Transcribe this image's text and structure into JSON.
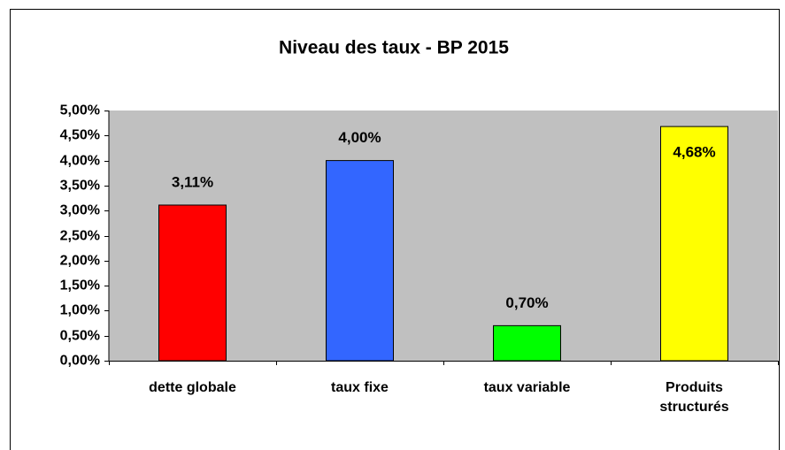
{
  "chart_data": {
    "type": "bar",
    "title": "Niveau des taux - BP 2015",
    "categories": [
      "dette globale",
      "taux fixe",
      "taux variable",
      "Produits structurés"
    ],
    "values": [
      3.11,
      4.0,
      0.7,
      4.68
    ],
    "value_labels": [
      "3,11%",
      "4,00%",
      "0,70%",
      "4,68%"
    ],
    "colors": [
      "#ff0000",
      "#3366ff",
      "#00ff00",
      "#ffff00"
    ],
    "ylim": [
      0,
      5
    ],
    "yticks": [
      {
        "value": 0,
        "label": "0,00%"
      },
      {
        "value": 0.5,
        "label": "0,50%"
      },
      {
        "value": 1,
        "label": "1,00%"
      },
      {
        "value": 1.5,
        "label": "1,50%"
      },
      {
        "value": 2,
        "label": "2,00%"
      },
      {
        "value": 2.5,
        "label": "2,50%"
      },
      {
        "value": 3,
        "label": "3,00%"
      },
      {
        "value": 3.5,
        "label": "3,50%"
      },
      {
        "value": 4,
        "label": "4,00%"
      },
      {
        "value": 4.5,
        "label": "4,50%"
      },
      {
        "value": 5,
        "label": "5,00%"
      }
    ],
    "grid": false
  }
}
